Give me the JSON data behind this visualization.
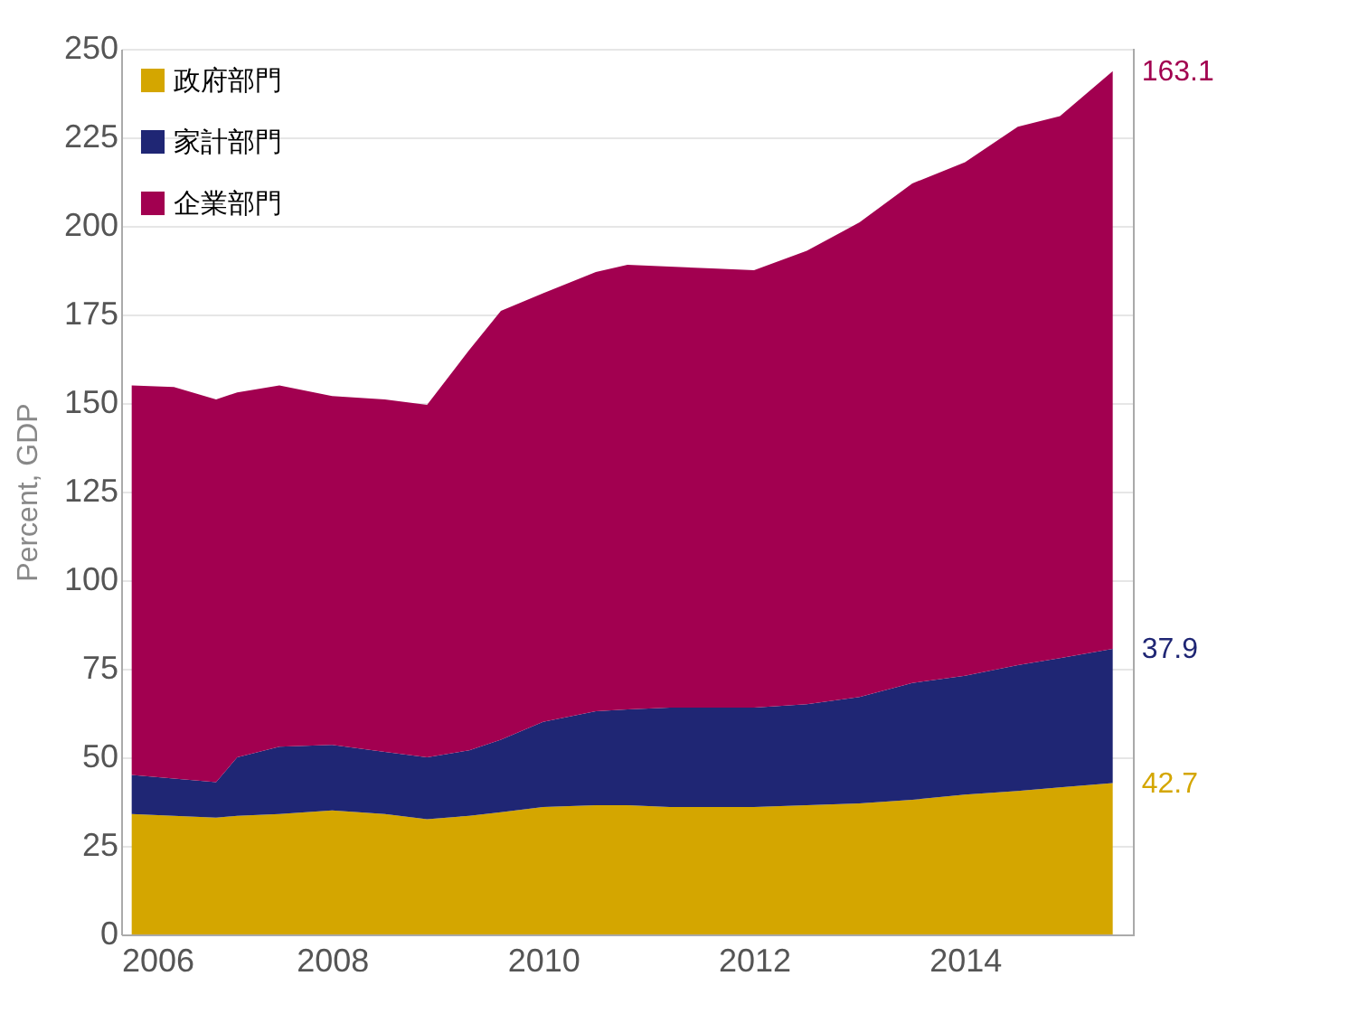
{
  "chart_data": {
    "type": "area",
    "stacked": true,
    "ylabel": "Percent, GDP",
    "x": [
      2006.1,
      2006.5,
      2006.9,
      2007.1,
      2007.5,
      2008.0,
      2008.5,
      2008.9,
      2009.3,
      2009.6,
      2010.0,
      2010.5,
      2010.8,
      2011.2,
      2011.6,
      2012.0,
      2012.5,
      2013.0,
      2013.5,
      2014.0,
      2014.5,
      2014.9,
      2015.4
    ],
    "series": [
      {
        "name": "政府部門",
        "color": "#d4a600",
        "values": [
          34,
          33.5,
          33,
          33.5,
          34,
          35,
          34,
          32.5,
          33.5,
          34.5,
          36,
          36.5,
          36.5,
          36,
          36,
          36,
          36.5,
          37,
          38,
          39.5,
          40.5,
          41.5,
          42.7
        ],
        "value_labels": [
          null,
          null,
          null,
          null,
          null,
          null,
          null,
          null,
          null,
          null,
          null,
          null,
          null,
          null,
          null,
          null,
          null,
          null,
          null,
          null,
          null,
          null,
          "42.7"
        ]
      },
      {
        "name": "家計部門",
        "color": "#1f2674",
        "values": [
          11,
          10.5,
          10,
          16.5,
          19,
          18.5,
          17.5,
          17.5,
          18.5,
          20.5,
          24,
          26.5,
          27,
          28,
          28,
          28,
          28.5,
          30,
          33,
          33.5,
          35.5,
          36.5,
          37.9
        ],
        "value_labels": [
          null,
          null,
          null,
          null,
          null,
          null,
          null,
          null,
          null,
          null,
          null,
          null,
          null,
          null,
          null,
          null,
          null,
          null,
          null,
          null,
          null,
          null,
          "37.9"
        ]
      },
      {
        "name": "企業部門",
        "color": "#a20050",
        "values": [
          110,
          110.5,
          108,
          103,
          102,
          98.5,
          99.5,
          99.5,
          113,
          121,
          121,
          124,
          125.5,
          124.5,
          124,
          123.5,
          128,
          134,
          141,
          145,
          152,
          153,
          163.1
        ],
        "value_labels": [
          null,
          null,
          null,
          null,
          null,
          null,
          null,
          null,
          null,
          null,
          null,
          null,
          null,
          null,
          null,
          null,
          null,
          null,
          null,
          null,
          null,
          null,
          "163.1"
        ]
      }
    ],
    "xlim": [
      2006,
      2015.6
    ],
    "xticks": [
      2006,
      2008,
      2010,
      2012,
      2014
    ],
    "ylim": [
      0,
      250
    ],
    "yticks": [
      0,
      25,
      50,
      75,
      100,
      125,
      150,
      175,
      200,
      225,
      250
    ],
    "grid": "y",
    "legend": "top left"
  }
}
